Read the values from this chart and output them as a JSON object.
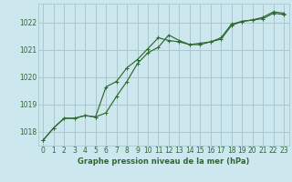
{
  "title": "Graphe pression niveau de la mer (hPa)",
  "bg_color": "#cce8ee",
  "grid_color": "#aac8d0",
  "line_color": "#2d6a2d",
  "xlim": [
    -0.5,
    23.5
  ],
  "ylim": [
    1017.5,
    1022.7
  ],
  "yticks": [
    1018,
    1019,
    1020,
    1021,
    1022
  ],
  "xticks": [
    0,
    1,
    2,
    3,
    4,
    5,
    6,
    7,
    8,
    9,
    10,
    11,
    12,
    13,
    14,
    15,
    16,
    17,
    18,
    19,
    20,
    21,
    22,
    23
  ],
  "series1_x": [
    0,
    1,
    2,
    3,
    4,
    5,
    6,
    7,
    8,
    9,
    10,
    11,
    12,
    13,
    14,
    15,
    16,
    17,
    18,
    19,
    20,
    21,
    22,
    23
  ],
  "series1_y": [
    1017.7,
    1018.15,
    1018.5,
    1018.5,
    1018.6,
    1018.55,
    1019.65,
    1019.85,
    1020.35,
    1020.65,
    1021.05,
    1021.45,
    1021.35,
    1021.3,
    1021.2,
    1021.25,
    1021.3,
    1021.4,
    1021.9,
    1022.05,
    1022.1,
    1022.15,
    1022.35,
    1022.3
  ],
  "series2_x": [
    0,
    1,
    2,
    3,
    4,
    5,
    6,
    7,
    8,
    9,
    10,
    11,
    12,
    13,
    14,
    15,
    16,
    17,
    18,
    19,
    20,
    21,
    22,
    23
  ],
  "series2_y": [
    1017.7,
    1018.15,
    1018.5,
    1018.5,
    1018.6,
    1018.55,
    1018.7,
    1019.3,
    1019.85,
    1020.5,
    1020.9,
    1021.1,
    1021.55,
    1021.35,
    1021.2,
    1021.2,
    1021.3,
    1021.45,
    1021.95,
    1022.05,
    1022.1,
    1022.2,
    1022.4,
    1022.35
  ],
  "title_fontsize": 6.0,
  "tick_fontsize": 5.5
}
